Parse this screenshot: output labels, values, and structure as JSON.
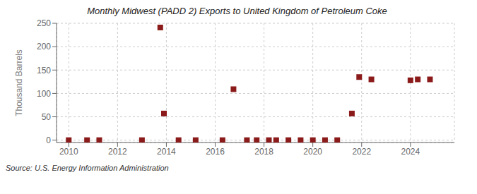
{
  "chart_data": {
    "type": "scatter",
    "title": "Monthly Midwest (PADD 2) Exports to United Kingdom of Petroleum Coke",
    "y_label": "Thousand Barrels",
    "annotations": [
      "Source: U.S. Energy Information Administration"
    ],
    "x": [
      2010.0,
      2010.75,
      2011.25,
      2013.0,
      2013.75,
      2013.9,
      2014.5,
      2015.2,
      2016.3,
      2016.75,
      2017.3,
      2017.7,
      2018.2,
      2018.5,
      2019.0,
      2019.5,
      2020.0,
      2020.5,
      2021.0,
      2021.6,
      2021.9,
      2022.4,
      2024.0,
      2024.3,
      2024.8
    ],
    "values": [
      0,
      0,
      0,
      0,
      241,
      57,
      0,
      0,
      0,
      109,
      0,
      0,
      0,
      0,
      0,
      0,
      0,
      0,
      0,
      57,
      135,
      130,
      128,
      130,
      130
    ],
    "color": "#8b1a1a",
    "marker": "square",
    "xlim": [
      2009.5,
      2025.8
    ],
    "xticks": [
      2010,
      2012,
      2014,
      2016,
      2018,
      2020,
      2022,
      2024
    ],
    "ylim": [
      -5,
      250
    ],
    "yticks": [
      0,
      50,
      100,
      150,
      200,
      250
    ],
    "grid": true
  }
}
